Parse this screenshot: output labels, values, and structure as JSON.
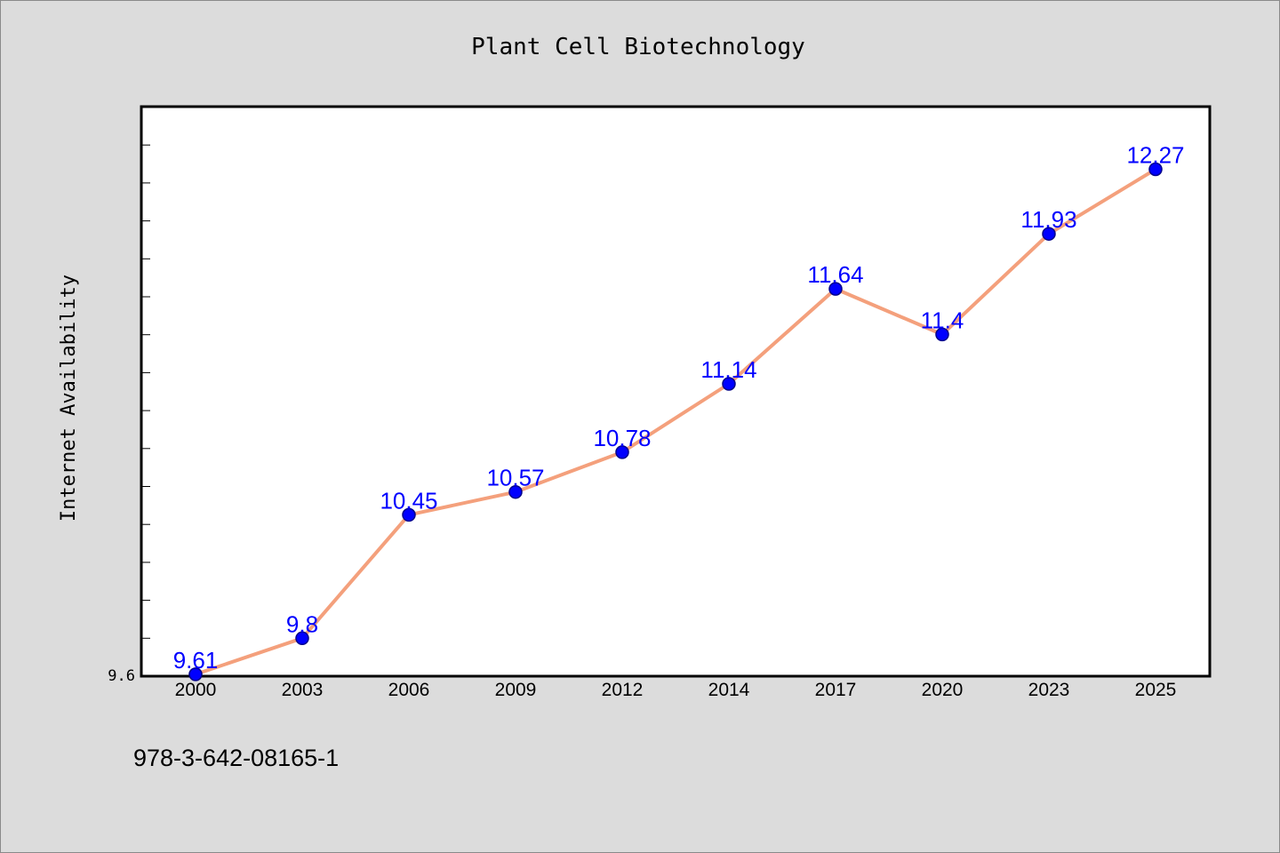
{
  "chart_data": {
    "type": "line",
    "title": "Plant Cell Biotechnology",
    "xlabel": "",
    "ylabel": "Internet Availability",
    "categories": [
      "2000",
      "2003",
      "2006",
      "2009",
      "2012",
      "2014",
      "2017",
      "2020",
      "2023",
      "2025"
    ],
    "series": [
      {
        "values": [
          9.61,
          9.8,
          10.45,
          10.57,
          10.78,
          11.14,
          11.64,
          11.4,
          11.93,
          12.27
        ],
        "data_labels": [
          "9.61",
          "9.8",
          "10.45",
          "10.57",
          "10.78",
          "11.14",
          "11.64",
          "11.4",
          "11.93",
          "12.27"
        ]
      }
    ],
    "y_tick_labels": [
      "9.6"
    ],
    "ylim": [
      9.6,
      12.6
    ],
    "grid": false,
    "legend": "none",
    "colors": {
      "line": "#f4a07c",
      "marker": "#0000ff",
      "marker_edge": "#00008b",
      "data_label": "#0000ff",
      "plot_background": "#ffffff",
      "figure_background": "#dcdcdc"
    }
  },
  "footer": {
    "isbn": "978-3-642-08165-1"
  }
}
